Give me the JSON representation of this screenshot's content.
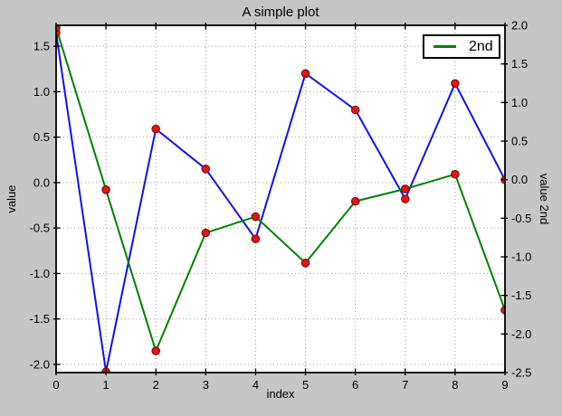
{
  "chart_data": {
    "type": "line",
    "title": "A simple plot",
    "xlabel": "index",
    "ylabel_left": "value",
    "ylabel_right": "value 2nd",
    "x": [
      0,
      1,
      2,
      3,
      4,
      5,
      6,
      7,
      8,
      9
    ],
    "series": [
      {
        "name": "value",
        "axis": "left",
        "color": "#1212e0",
        "marker": "red-circle",
        "values": [
          1.65,
          -2.08,
          0.59,
          0.15,
          -0.62,
          1.2,
          0.8,
          -0.18,
          1.09,
          0.03
        ]
      },
      {
        "name": "2nd",
        "axis": "right",
        "color": "#008000",
        "marker": "red-circle",
        "values": [
          1.97,
          -0.13,
          -2.22,
          -0.69,
          -0.48,
          -1.08,
          -0.28,
          -0.12,
          0.07,
          -1.69
        ]
      }
    ],
    "xlim": [
      0,
      9
    ],
    "ylim_left": [
      -2.09,
      1.73
    ],
    "ylim_right": [
      -2.5,
      2.0
    ],
    "xticks": [
      0,
      1,
      2,
      3,
      4,
      5,
      6,
      7,
      8,
      9
    ],
    "yticks_left": [
      1.5,
      1.0,
      0.5,
      0.0,
      -0.5,
      -1.0,
      -1.5,
      -2.0
    ],
    "yticks_right": [
      2.0,
      1.5,
      1.0,
      0.5,
      0.0,
      -0.5,
      -1.0,
      -1.5,
      -2.0,
      -2.5
    ],
    "grid": true,
    "legend_position": "upper right"
  },
  "legend": {
    "entries": [
      {
        "label": "2nd",
        "color": "#008000"
      }
    ]
  },
  "colors": {
    "figure_bg": "#c6c6c6",
    "plot_bg": "#ffffff",
    "grid": "#999999",
    "frame": "#000000",
    "marker_fill": "#ee1111",
    "marker_edge": "#7a0f0f",
    "text": "#000000"
  }
}
